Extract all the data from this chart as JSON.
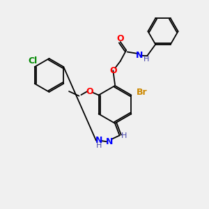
{
  "bg_color": "#f0f0f0",
  "bond_color": "#000000",
  "atom_colors": {
    "O": "#ff0000",
    "N": "#0000ff",
    "Br": "#cc8800",
    "Cl": "#008800",
    "H": "#4444aa",
    "C": "#000000"
  },
  "font_size": 8,
  "lw": 1.3
}
